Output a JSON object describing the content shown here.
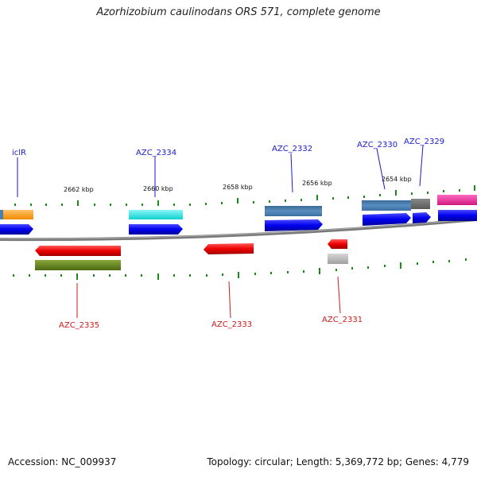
{
  "title": "Azorhizobium caulinodans ORS 571, complete genome",
  "accession": "Accession: NC_009937",
  "summary": "Topology: circular; Length: 5,369,772 bp; Genes: 4,779",
  "scale_labels": [
    "2662 kbp",
    "2660 kbp",
    "2658 kbp",
    "2656 kbp",
    "2654 kbp"
  ],
  "forward_gene_labels": [
    "iclR",
    "AZC_2334",
    "AZC_2332",
    "AZC_2330",
    "AZC_2329"
  ],
  "reverse_gene_labels": [
    "AZC_2335",
    "AZC_2333",
    "AZC_2331"
  ],
  "colors": {
    "backbone": "#808080",
    "forward_label": "#1a1acc",
    "reverse_label": "#cc1a1a",
    "tick": "#1a8a1a",
    "cds_blue": "#0000ee",
    "cds_red": "#ee0000",
    "orange": "#ff9a1a",
    "cyan": "#22e6e6",
    "steelblue": "#4a7fb0",
    "grey": "#707070",
    "olive": "#6b8a22",
    "magenta": "#ee2a9a",
    "silver": "#b8b8b8"
  }
}
